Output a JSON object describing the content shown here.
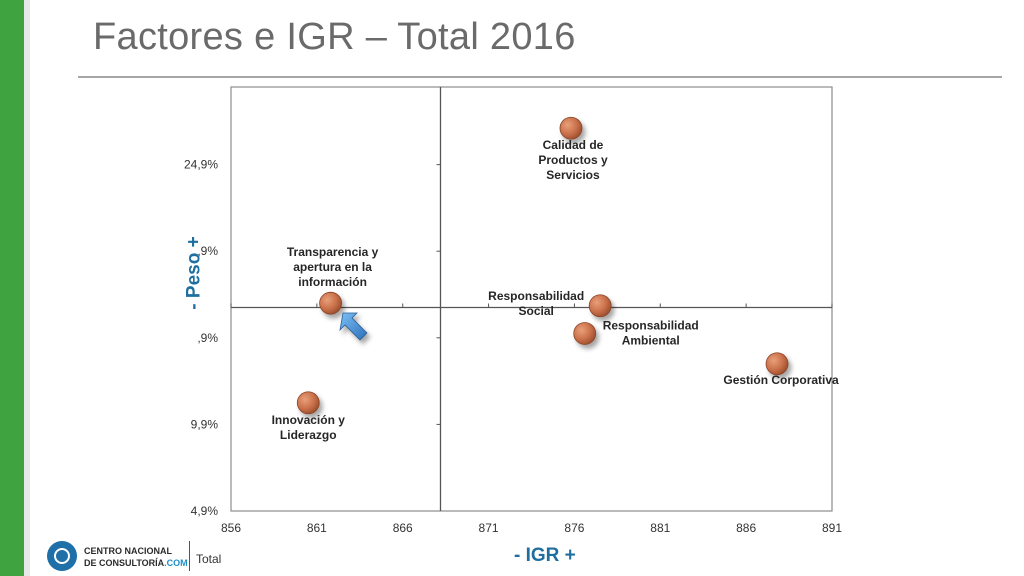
{
  "title": "Factores e IGR – Total 2016",
  "footer": {
    "logo_line1": "CENTRO NACIONAL",
    "logo_line2": "DE CONSULTORÍA",
    "logo_com": ".COM",
    "label": "Total"
  },
  "colors": {
    "brand_green": "#3fa33f",
    "axis_title": "#1e6f9f",
    "point": "#c9704a",
    "arrow": "#4a90d9"
  },
  "chart_data": {
    "type": "scatter",
    "title": "",
    "xlabel": "- IGR +",
    "ylabel": "- Peso +",
    "xlim": [
      856,
      891
    ],
    "ylim": [
      0,
      4.7
    ],
    "x_ticks": [
      856,
      861,
      866,
      871,
      876,
      881,
      886,
      891
    ],
    "y_ticks": [
      {
        "value": 0,
        "label": "4,9%"
      },
      {
        "value": 1,
        "label": "9,9%"
      },
      {
        "value": 2,
        "label": ",9%"
      },
      {
        "value": 3,
        "label": ",9%"
      },
      {
        "value": 4,
        "label": "24,9%"
      }
    ],
    "quadrant_lines": {
      "x": 868.2,
      "y": 2.35
    },
    "grid": false,
    "points": [
      {
        "label": "Calidad de Productos y Servicios",
        "label_lines": [
          "Calidad de",
          "Productos y",
          "Servicios"
        ],
        "x": 875.8,
        "y": 4.42
      },
      {
        "label": "Transparencia y apertura en la información",
        "label_lines": [
          "Transparencia y",
          "apertura en la",
          "información"
        ],
        "x": 861.8,
        "y": 2.4
      },
      {
        "label": "Responsabilidad Social",
        "label_lines": [
          "Responsabilidad",
          "Social"
        ],
        "x": 877.5,
        "y": 2.37
      },
      {
        "label": "Responsabilidad Ambiental",
        "label_lines": [
          "Responsabilidad",
          "Ambiental"
        ],
        "x": 876.6,
        "y": 2.05
      },
      {
        "label": "Gestión Corporativa",
        "label_lines": [
          "Gestión Corporativa"
        ],
        "x": 887.8,
        "y": 1.7
      },
      {
        "label": "Innovación y Liderazgo",
        "label_lines": [
          "Innovación y",
          "Liderazgo"
        ],
        "x": 860.5,
        "y": 1.25
      }
    ]
  }
}
